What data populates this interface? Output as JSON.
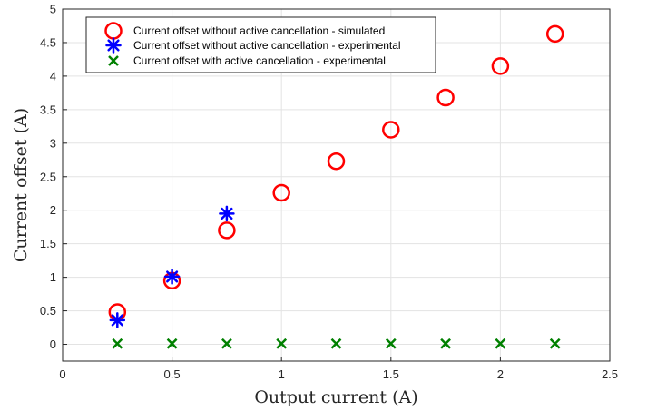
{
  "chart_data": {
    "type": "scatter",
    "title": "",
    "xlabel": "Output current (A)",
    "ylabel": "Current offset (A)",
    "xlim": [
      0,
      2.5
    ],
    "ylim": [
      -0.25,
      5
    ],
    "xticks": [
      "0",
      "0.5",
      "1",
      "1.5",
      "2",
      "2.5"
    ],
    "yticks": [
      "0",
      "0.5",
      "1",
      "1.5",
      "2",
      "2.5",
      "3",
      "3.5",
      "4",
      "4.5",
      "5"
    ],
    "grid": true,
    "legend_position": "top-left",
    "series": [
      {
        "name": "Current offset without active cancellation - simulated",
        "marker": "circle",
        "color": "#ff0000",
        "x": [
          0.25,
          0.5,
          0.75,
          1.0,
          1.25,
          1.5,
          1.75,
          2.0,
          2.25
        ],
        "y": [
          0.48,
          0.95,
          1.7,
          2.26,
          2.73,
          3.2,
          3.68,
          4.15,
          4.63
        ]
      },
      {
        "name": "Current offset without active cancellation - experimental",
        "marker": "asterisk",
        "color": "#0000ff",
        "x": [
          0.25,
          0.5,
          0.75
        ],
        "y": [
          0.36,
          1.01,
          1.95
        ]
      },
      {
        "name": "Current offset with active cancellation - experimental",
        "marker": "x",
        "color": "#008000",
        "x": [
          0.25,
          0.5,
          0.75,
          1.0,
          1.25,
          1.5,
          1.75,
          2.0,
          2.25
        ],
        "y": [
          0.01,
          0.01,
          0.01,
          0.01,
          0.01,
          0.01,
          0.01,
          0.01,
          0.01
        ]
      }
    ]
  }
}
